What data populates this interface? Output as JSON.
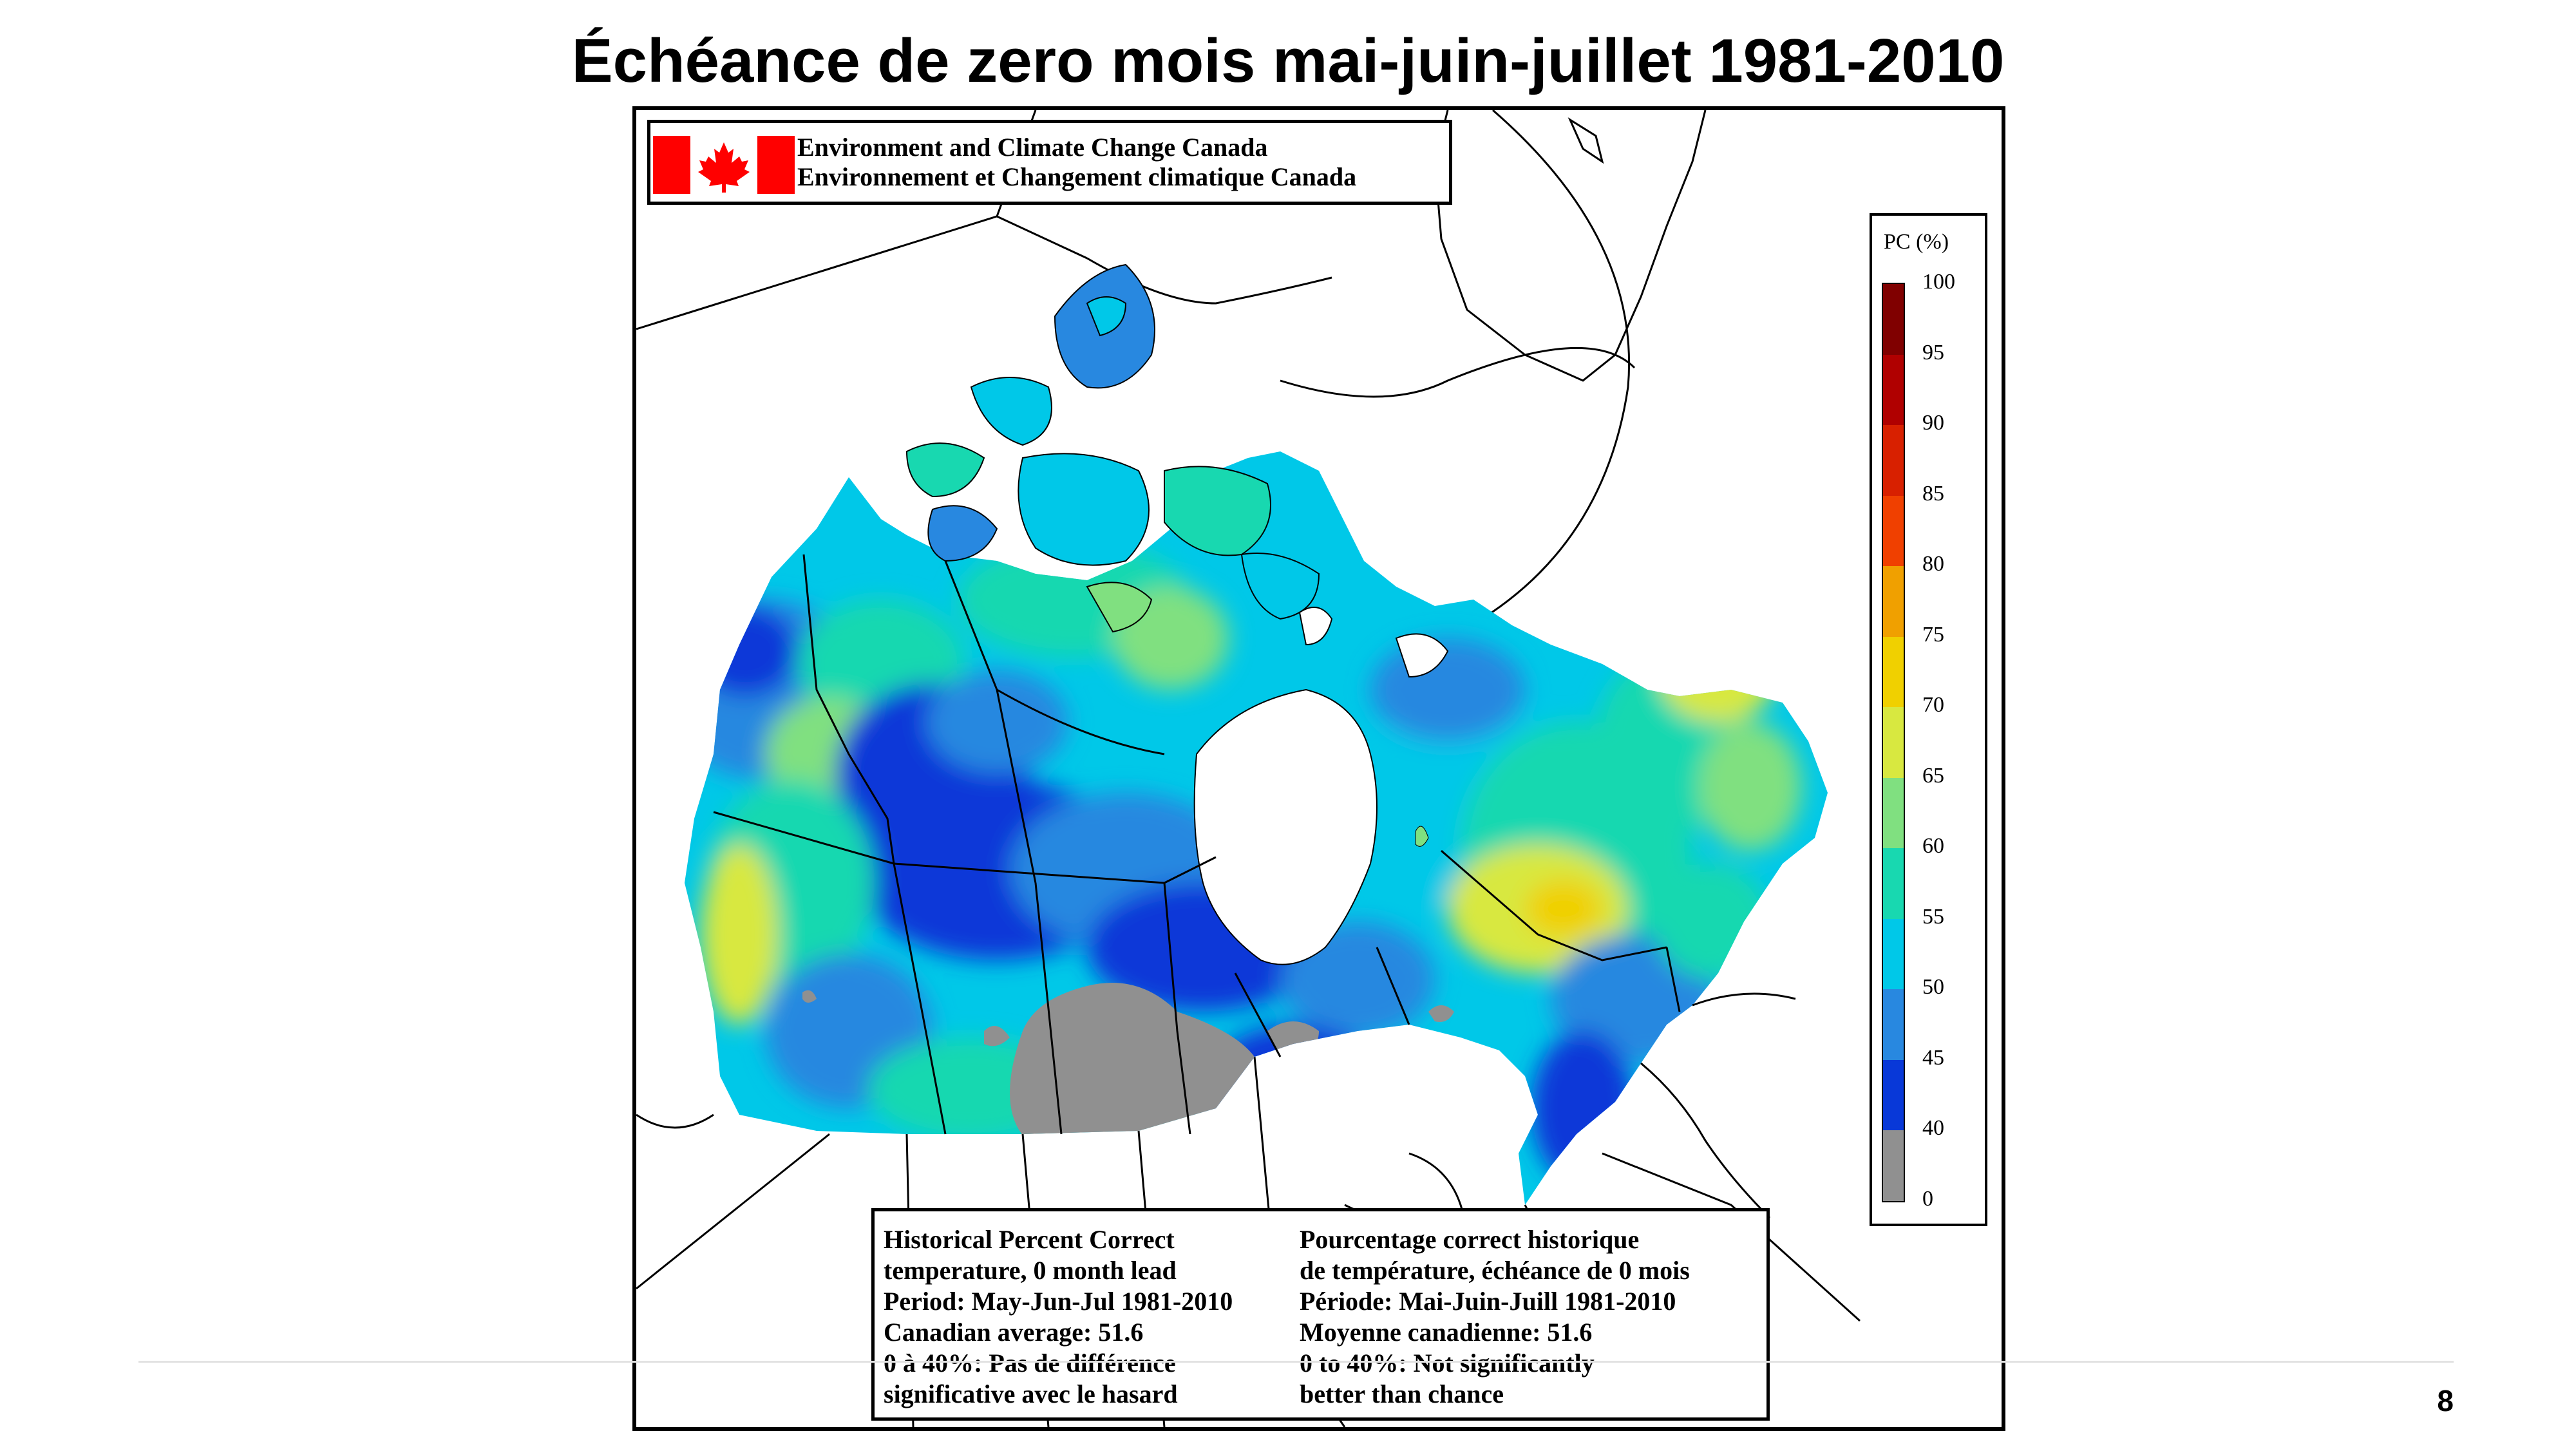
{
  "slide": {
    "title": "Échéance de zero mois mai-juin-juillet 1981-2010",
    "page_number": "8"
  },
  "map": {
    "agency_line_en": "Environment and Climate Change Canada",
    "agency_line_fr": "Environnement et Changement climatique Canada",
    "legend": {
      "title": "PC (%)",
      "ticks": [
        "100",
        "95",
        "90",
        "85",
        "80",
        "75",
        "70",
        "65",
        "60",
        "55",
        "50",
        "45",
        "40",
        "0"
      ],
      "bins": [
        {
          "range": "95-100",
          "color": "#800000"
        },
        {
          "range": "90-95",
          "color": "#b00000"
        },
        {
          "range": "85-90",
          "color": "#d82000"
        },
        {
          "range": "80-85",
          "color": "#f04000"
        },
        {
          "range": "75-80",
          "color": "#f0a000"
        },
        {
          "range": "70-75",
          "color": "#f0d000"
        },
        {
          "range": "65-70",
          "color": "#d8e840"
        },
        {
          "range": "60-65",
          "color": "#80e080"
        },
        {
          "range": "55-60",
          "color": "#18d8b0"
        },
        {
          "range": "50-55",
          "color": "#00c8e8"
        },
        {
          "range": "45-50",
          "color": "#2888e0"
        },
        {
          "range": "40-45",
          "color": "#0838d8"
        },
        {
          "range": "0-40",
          "color": "#909090"
        }
      ]
    },
    "info_en": [
      "Historical Percent Correct",
      "temperature, 0 month lead",
      "Period: May-Jun-Jul 1981-2010",
      "Canadian average: 51.6",
      "0 à 40%: Pas de différence",
      "significative avec le hasard"
    ],
    "info_fr": [
      "Pourcentage correct historique",
      "de température, échéance de 0 mois",
      "Période: Mai-Juin-Juill 1981-2010",
      "Moyenne canadienne: 51.6",
      "0 to 40%: Not significantly",
      "better than chance"
    ],
    "canadian_average_pc": 51.6
  }
}
